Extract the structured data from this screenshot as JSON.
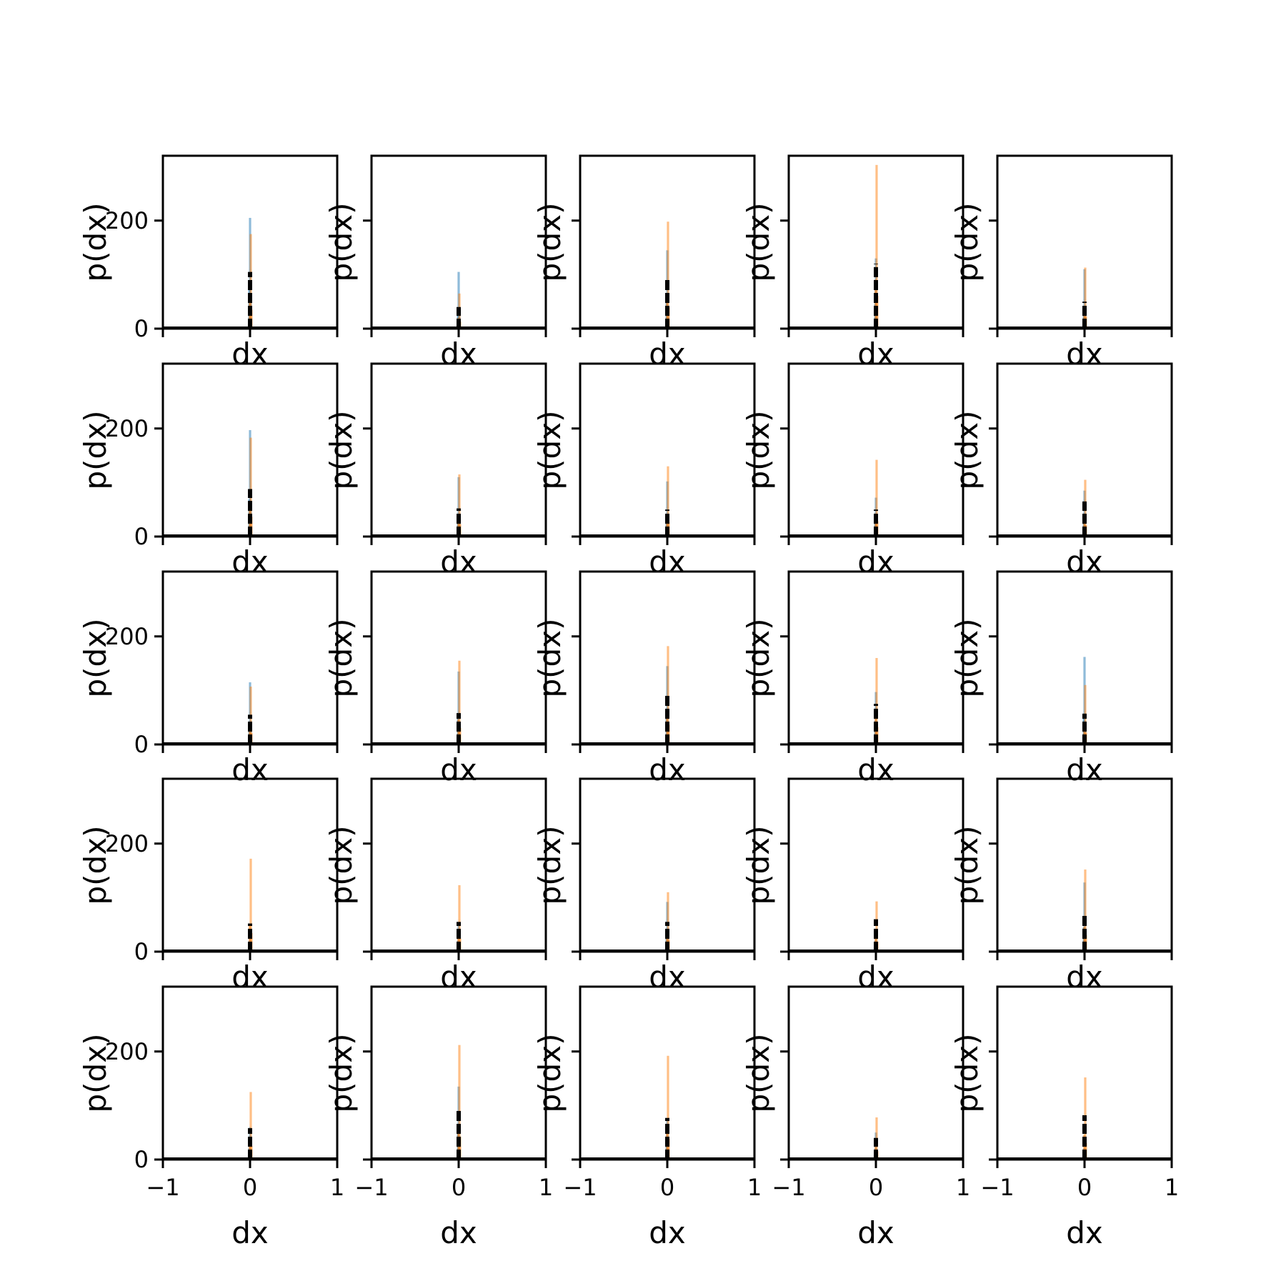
{
  "chart_data": {
    "type": "bar",
    "layout": "5x5 grid of histograms",
    "xlabel": "dx",
    "ylabel": "p(dx)",
    "xlim": [
      -1,
      1
    ],
    "ylim": [
      0,
      320
    ],
    "x_ticks": [
      -1,
      0,
      1
    ],
    "x_tick_labels": [
      "−1",
      "0",
      "1"
    ],
    "y_ticks": [
      0,
      200
    ],
    "y_tick_labels": [
      "0",
      "200"
    ],
    "grid": false,
    "legend": "none",
    "colors": {
      "blue": "#1f77b4",
      "orange": "#ff7f0e",
      "black": "#000000"
    },
    "panels": [
      {
        "row": 0,
        "col": 0,
        "blue_peak": 205,
        "orange_peak": 175,
        "black_peak": 105
      },
      {
        "row": 0,
        "col": 1,
        "blue_peak": 105,
        "orange_peak": 65,
        "black_peak": 40
      },
      {
        "row": 0,
        "col": 2,
        "blue_peak": 145,
        "orange_peak": 198,
        "black_peak": 90
      },
      {
        "row": 0,
        "col": 3,
        "blue_peak": 130,
        "orange_peak": 303,
        "black_peak": 120
      },
      {
        "row": 0,
        "col": 4,
        "blue_peak": 110,
        "orange_peak": 113,
        "black_peak": 50
      },
      {
        "row": 1,
        "col": 0,
        "blue_peak": 197,
        "orange_peak": 183,
        "black_peak": 88
      },
      {
        "row": 1,
        "col": 1,
        "blue_peak": 110,
        "orange_peak": 115,
        "black_peak": 52
      },
      {
        "row": 1,
        "col": 2,
        "blue_peak": 102,
        "orange_peak": 130,
        "black_peak": 50
      },
      {
        "row": 1,
        "col": 3,
        "blue_peak": 72,
        "orange_peak": 142,
        "black_peak": 50
      },
      {
        "row": 1,
        "col": 4,
        "blue_peak": 85,
        "orange_peak": 105,
        "black_peak": 65
      },
      {
        "row": 2,
        "col": 0,
        "blue_peak": 115,
        "orange_peak": 107,
        "black_peak": 55
      },
      {
        "row": 2,
        "col": 1,
        "blue_peak": 135,
        "orange_peak": 155,
        "black_peak": 58
      },
      {
        "row": 2,
        "col": 2,
        "blue_peak": 145,
        "orange_peak": 182,
        "black_peak": 92
      },
      {
        "row": 2,
        "col": 3,
        "blue_peak": 97,
        "orange_peak": 160,
        "black_peak": 75
      },
      {
        "row": 2,
        "col": 4,
        "blue_peak": 162,
        "orange_peak": 110,
        "black_peak": 57
      },
      {
        "row": 3,
        "col": 0,
        "blue_peak": 40,
        "orange_peak": 172,
        "black_peak": 52
      },
      {
        "row": 3,
        "col": 1,
        "blue_peak": 55,
        "orange_peak": 123,
        "black_peak": 55
      },
      {
        "row": 3,
        "col": 2,
        "blue_peak": 92,
        "orange_peak": 110,
        "black_peak": 55
      },
      {
        "row": 3,
        "col": 3,
        "blue_peak": 40,
        "orange_peak": 93,
        "black_peak": 60
      },
      {
        "row": 3,
        "col": 4,
        "blue_peak": 128,
        "orange_peak": 152,
        "black_peak": 67
      },
      {
        "row": 4,
        "col": 0,
        "blue_peak": 60,
        "orange_peak": 125,
        "black_peak": 58
      },
      {
        "row": 4,
        "col": 1,
        "blue_peak": 135,
        "orange_peak": 212,
        "black_peak": 92
      },
      {
        "row": 4,
        "col": 2,
        "blue_peak": 75,
        "orange_peak": 192,
        "black_peak": 77
      },
      {
        "row": 4,
        "col": 3,
        "blue_peak": 50,
        "orange_peak": 78,
        "black_peak": 40
      },
      {
        "row": 4,
        "col": 4,
        "blue_peak": 22,
        "orange_peak": 152,
        "black_peak": 82
      }
    ]
  }
}
